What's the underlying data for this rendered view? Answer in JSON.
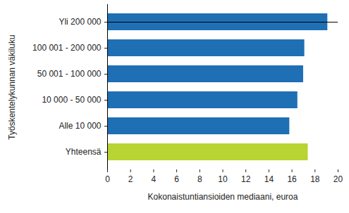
{
  "chart_data": {
    "type": "bar",
    "orientation": "horizontal",
    "categories": [
      "Yli 200 000",
      "100 001 - 200 000",
      "50 001 - 100 000",
      "10 000 - 50 000",
      "Alle 10 000",
      "Yhteensä"
    ],
    "values": [
      19.1,
      17.1,
      17.0,
      16.5,
      15.8,
      17.4
    ],
    "colors": [
      "#1f6fb4",
      "#1f6fb4",
      "#1f6fb4",
      "#1f6fb4",
      "#1f6fb4",
      "#b8d433"
    ],
    "x_label": "Kokonaistuntiansioiden mediaani, euroa",
    "y_label": "Työskentelykunnan väkiluku",
    "xlim": [
      0,
      20
    ],
    "xticks": [
      0,
      2,
      4,
      6,
      8,
      10,
      12,
      14,
      16,
      18,
      20
    ],
    "grid": false
  }
}
